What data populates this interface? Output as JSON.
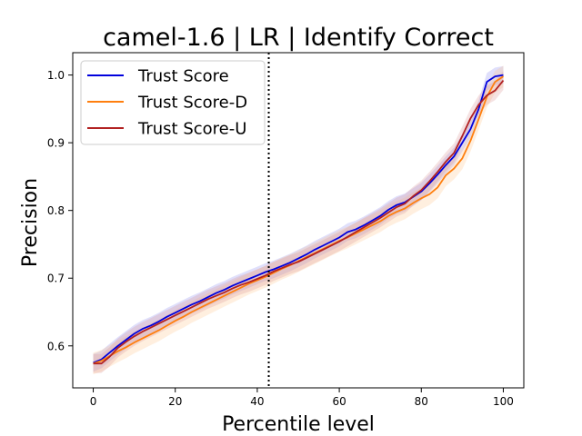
{
  "chart_data": {
    "type": "line",
    "title": "camel-1.6 | LR | Identify Correct",
    "xlabel": "Percentile level",
    "ylabel": "Precision",
    "xlim": [
      -5,
      105
    ],
    "ylim": [
      0.538,
      1.033
    ],
    "xticks": [
      0,
      20,
      40,
      60,
      80,
      100
    ],
    "yticks": [
      0.6,
      0.7,
      0.8,
      0.9,
      1.0
    ],
    "xtick_labels": [
      "0",
      "20",
      "40",
      "60",
      "80",
      "100"
    ],
    "ytick_labels": [
      "0.6",
      "0.7",
      "0.8",
      "0.9",
      "1.0"
    ],
    "legend_position": "upper-left",
    "grid": false,
    "vline": {
      "x": 42.8,
      "style": "dotted"
    },
    "x": [
      0,
      2,
      4,
      6,
      8,
      10,
      12,
      14,
      16,
      18,
      20,
      22,
      24,
      26,
      28,
      30,
      32,
      34,
      36,
      38,
      40,
      42,
      44,
      46,
      48,
      50,
      52,
      54,
      56,
      58,
      60,
      62,
      64,
      66,
      68,
      70,
      72,
      74,
      76,
      78,
      80,
      82,
      84,
      86,
      88,
      90,
      92,
      94,
      96,
      98,
      100
    ],
    "series": [
      {
        "name": "Trust Score",
        "color": "#0000dd",
        "band_color": "#8080f0",
        "values": [
          0.575,
          0.58,
          0.59,
          0.6,
          0.609,
          0.618,
          0.625,
          0.63,
          0.636,
          0.643,
          0.649,
          0.655,
          0.661,
          0.666,
          0.672,
          0.678,
          0.683,
          0.689,
          0.694,
          0.699,
          0.704,
          0.709,
          0.713,
          0.718,
          0.723,
          0.729,
          0.735,
          0.742,
          0.748,
          0.754,
          0.76,
          0.768,
          0.772,
          0.778,
          0.785,
          0.792,
          0.801,
          0.808,
          0.812,
          0.82,
          0.828,
          0.84,
          0.853,
          0.867,
          0.88,
          0.9,
          0.92,
          0.95,
          0.99,
          0.998,
          1.0
        ],
        "band": 0.013
      },
      {
        "name": "Trust Score-D",
        "color": "#ff7f0e",
        "band_color": "#ffbf80",
        "values": [
          0.574,
          0.578,
          0.585,
          0.592,
          0.598,
          0.605,
          0.611,
          0.617,
          0.623,
          0.63,
          0.637,
          0.643,
          0.65,
          0.656,
          0.662,
          0.668,
          0.674,
          0.68,
          0.686,
          0.692,
          0.697,
          0.702,
          0.708,
          0.714,
          0.719,
          0.725,
          0.731,
          0.737,
          0.743,
          0.749,
          0.755,
          0.76,
          0.766,
          0.772,
          0.778,
          0.784,
          0.792,
          0.798,
          0.803,
          0.811,
          0.818,
          0.824,
          0.834,
          0.852,
          0.862,
          0.877,
          0.903,
          0.935,
          0.968,
          0.99,
          0.998
        ],
        "band": 0.016
      },
      {
        "name": "Trust Score-U",
        "color": "#b22222",
        "band_color": "#d88a8a",
        "values": [
          0.574,
          0.574,
          0.584,
          0.597,
          0.606,
          0.614,
          0.621,
          0.627,
          0.633,
          0.639,
          0.645,
          0.651,
          0.657,
          0.663,
          0.669,
          0.674,
          0.679,
          0.685,
          0.69,
          0.694,
          0.699,
          0.704,
          0.71,
          0.715,
          0.72,
          0.724,
          0.73,
          0.736,
          0.742,
          0.748,
          0.754,
          0.761,
          0.768,
          0.775,
          0.782,
          0.789,
          0.797,
          0.805,
          0.81,
          0.821,
          0.83,
          0.843,
          0.857,
          0.872,
          0.885,
          0.91,
          0.936,
          0.956,
          0.97,
          0.977,
          0.992
        ],
        "band": 0.014
      }
    ]
  }
}
